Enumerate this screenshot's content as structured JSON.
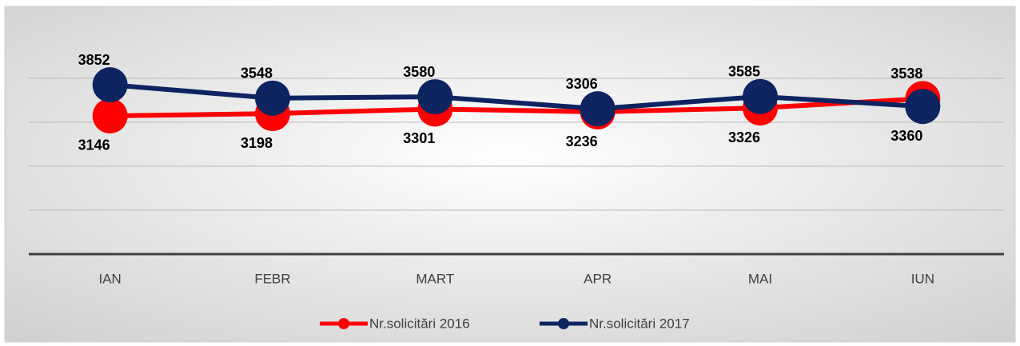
{
  "chart_data": {
    "type": "line",
    "categories": [
      "IAN",
      "FEBR",
      "MART",
      "APR",
      "MAI",
      "IUN"
    ],
    "series": [
      {
        "name": "Nr.solicitări 2016",
        "color": "#ff0000",
        "values": [
          3146,
          3198,
          3301,
          3236,
          3326,
          3538
        ]
      },
      {
        "name": "Nr.solicitări 2017",
        "color": "#0d2461",
        "values": [
          3852,
          3548,
          3580,
          3306,
          3585,
          3360
        ]
      }
    ],
    "ylim": [
      0,
      4600
    ],
    "yticks": [
      0,
      1000,
      2000,
      3000,
      4000
    ],
    "grid": true,
    "legend": "bottom"
  }
}
